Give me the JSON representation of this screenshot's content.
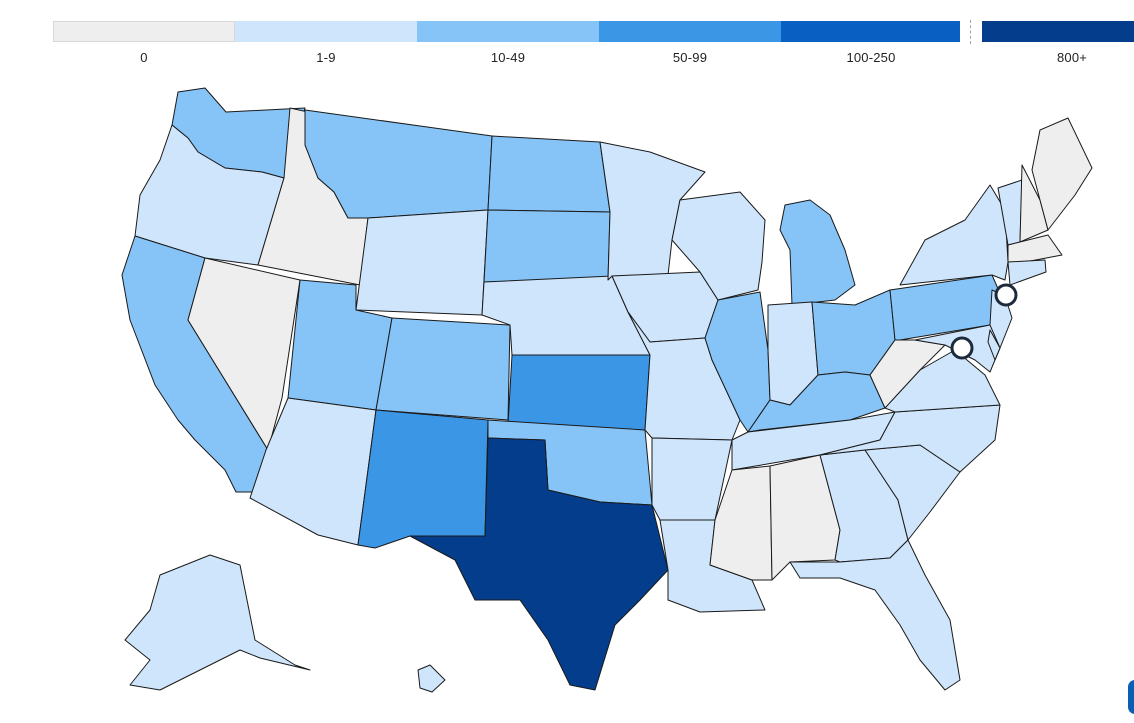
{
  "legend": {
    "bins": [
      {
        "label": "0",
        "color": "#eeeeee"
      },
      {
        "label": "1-9",
        "color": "#cfe5fb"
      },
      {
        "label": "10-49",
        "color": "#86c4f7"
      },
      {
        "label": "50-99",
        "color": "#3b97e6"
      },
      {
        "label": "100-250",
        "color": "#0a5fc2"
      },
      {
        "label": "800+",
        "color": "#033d8c"
      }
    ]
  },
  "states": [
    {
      "name": "Washington",
      "bin": "10-49"
    },
    {
      "name": "Oregon",
      "bin": "1-9"
    },
    {
      "name": "California",
      "bin": "10-49"
    },
    {
      "name": "Idaho",
      "bin": "0"
    },
    {
      "name": "Nevada",
      "bin": "0"
    },
    {
      "name": "Montana",
      "bin": "10-49"
    },
    {
      "name": "Wyoming",
      "bin": "1-9"
    },
    {
      "name": "Utah",
      "bin": "10-49"
    },
    {
      "name": "Arizona",
      "bin": "1-9"
    },
    {
      "name": "Colorado",
      "bin": "10-49"
    },
    {
      "name": "New Mexico",
      "bin": "50-99"
    },
    {
      "name": "North Dakota",
      "bin": "10-49"
    },
    {
      "name": "South Dakota",
      "bin": "10-49"
    },
    {
      "name": "Nebraska",
      "bin": "1-9"
    },
    {
      "name": "Kansas",
      "bin": "50-99"
    },
    {
      "name": "Oklahoma",
      "bin": "10-49"
    },
    {
      "name": "Texas",
      "bin": "800+"
    },
    {
      "name": "Minnesota",
      "bin": "1-9"
    },
    {
      "name": "Iowa",
      "bin": "1-9"
    },
    {
      "name": "Missouri",
      "bin": "1-9"
    },
    {
      "name": "Arkansas",
      "bin": "1-9"
    },
    {
      "name": "Louisiana",
      "bin": "1-9"
    },
    {
      "name": "Wisconsin",
      "bin": "1-9"
    },
    {
      "name": "Illinois",
      "bin": "10-49"
    },
    {
      "name": "Michigan",
      "bin": "10-49"
    },
    {
      "name": "Indiana",
      "bin": "1-9"
    },
    {
      "name": "Ohio",
      "bin": "10-49"
    },
    {
      "name": "Kentucky",
      "bin": "10-49"
    },
    {
      "name": "Tennessee",
      "bin": "1-9"
    },
    {
      "name": "Mississippi",
      "bin": "0"
    },
    {
      "name": "Alabama",
      "bin": "0"
    },
    {
      "name": "Georgia",
      "bin": "1-9"
    },
    {
      "name": "Florida",
      "bin": "1-9"
    },
    {
      "name": "South Carolina",
      "bin": "1-9"
    },
    {
      "name": "North Carolina",
      "bin": "1-9"
    },
    {
      "name": "Virginia",
      "bin": "1-9"
    },
    {
      "name": "West Virginia",
      "bin": "0"
    },
    {
      "name": "Pennsylvania",
      "bin": "10-49"
    },
    {
      "name": "New York",
      "bin": "1-9"
    },
    {
      "name": "New Jersey",
      "bin": "1-9"
    },
    {
      "name": "Maryland",
      "bin": "1-9"
    },
    {
      "name": "Delaware",
      "bin": "1-9"
    },
    {
      "name": "Vermont",
      "bin": "1-9"
    },
    {
      "name": "New Hampshire",
      "bin": "0"
    },
    {
      "name": "Maine",
      "bin": "0"
    },
    {
      "name": "Massachusetts",
      "bin": "0"
    },
    {
      "name": "Connecticut",
      "bin": "1-9"
    },
    {
      "name": "Alaska",
      "bin": "1-9"
    },
    {
      "name": "Hawaii",
      "bin": "1-9"
    }
  ],
  "markers": [
    {
      "name": "New York City"
    },
    {
      "name": "Washington, D.C."
    }
  ]
}
